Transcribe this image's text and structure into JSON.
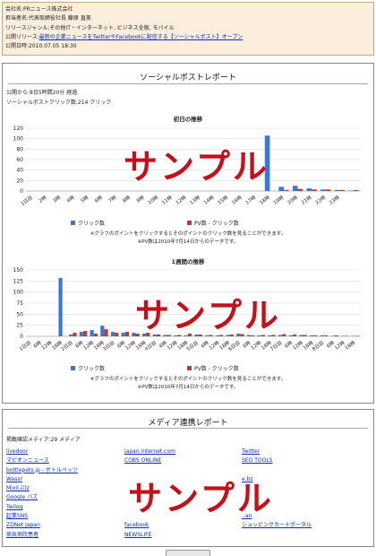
{
  "info": {
    "company": "会社名:PRニュース株式会社",
    "person": "担当者名:代表取締役社長 藤原 直美",
    "genre": "リリースジャンル:その他IT・インターネット, ビジネス全般, モバイル",
    "release_prefix": "公開リリース:",
    "release_link": "最新の企業ニュースをTwitterやFacebookに配信する【ソーシャルポスト】オープン",
    "published": "公開日時:2010.07.05 18:30"
  },
  "report": {
    "title": "ソーシャルポストレポート",
    "elapsed": "公開から:8日5時間20分 経過",
    "clicks": "ソーシャルポストクリック数:214 クリック",
    "sample_text": "サンプル"
  },
  "chart_data": [
    {
      "type": "bar",
      "title": "初日の推移",
      "categories": [
        "1日目",
        "2時",
        "3時",
        "4時",
        "5時",
        "6時",
        "7時",
        "8時",
        "9時",
        "10時",
        "11時",
        "12時",
        "13時",
        "14時",
        "15時",
        "16時",
        "17時",
        "18時",
        "19時",
        "20時",
        "21時",
        "22時",
        "23時",
        "0時"
      ],
      "tick_labels": [
        "1日目",
        "2時",
        "3時",
        "4時",
        "5時",
        "6時",
        "7時",
        "8時",
        "9時",
        "10時",
        "11時",
        "12時",
        "13時",
        "14時",
        "15時",
        "16時",
        "17時",
        "18時",
        "19時",
        "20時",
        "21時",
        "22時",
        "23時"
      ],
      "series": [
        {
          "name": "クリック数",
          "color": "#3a78d8",
          "values": [
            0,
            0,
            0,
            0,
            0,
            0,
            0,
            0,
            0,
            0,
            0,
            0,
            0,
            0,
            0,
            0,
            0,
            106,
            8,
            10,
            5,
            3,
            2,
            1
          ]
        },
        {
          "name": "PV数 - クリック数",
          "color": "#c0392b",
          "values": [
            0,
            0,
            0,
            0,
            0,
            0,
            0,
            0,
            0,
            0,
            0,
            0,
            0,
            0,
            0,
            0,
            0,
            0,
            2,
            4,
            3,
            3,
            2,
            2
          ]
        }
      ],
      "ylim": [
        0,
        120
      ],
      "yticks": [
        0,
        20,
        40,
        60,
        80,
        100,
        120
      ],
      "grid": true,
      "legend": "bottom",
      "notes": [
        "※グラフのポイントをクリックするとそのポイントのクリック数を見ることができます。",
        "※PV数は2010年7月14日からのデータです。"
      ]
    },
    {
      "type": "bar",
      "title": "1週間の推移",
      "categories": [
        "1日目",
        "6時",
        "12時",
        "18時",
        "2日目",
        "6時",
        "12時",
        "18時",
        "3日目",
        "6時",
        "12時",
        "18時",
        "4日目",
        "6時",
        "12時",
        "18時",
        "5日目",
        "6時",
        "12時",
        "18時",
        "6日目",
        "6時",
        "12時",
        "18時",
        "7日目",
        "6時",
        "12時",
        "18時",
        "8日目",
        "6時",
        "12時",
        "18時"
      ],
      "tick_labels": [
        "1日目",
        "6時",
        "12時",
        "18時",
        "2日目",
        "6時",
        "12時",
        "18時",
        "3日目",
        "6時",
        "12時",
        "18時",
        "4日目",
        "6時",
        "12時",
        "18時",
        "5日目",
        "6時",
        "12時",
        "18時",
        "6日目",
        "6時",
        "12時",
        "18時",
        "7日目",
        "6時",
        "12時",
        "18時",
        "8日目",
        "6時",
        "12時",
        "18時"
      ],
      "series": [
        {
          "name": "クリック数",
          "color": "#3a78d8",
          "values": [
            0,
            0,
            0,
            132,
            4,
            10,
            14,
            24,
            10,
            8,
            8,
            6,
            4,
            3,
            2,
            2,
            4,
            2,
            2,
            3,
            6,
            3,
            2,
            2,
            3,
            2,
            3,
            2,
            2,
            1,
            1,
            1
          ]
        },
        {
          "name": "PV数 - クリック数",
          "color": "#c0392b",
          "values": [
            0,
            0,
            0,
            0,
            8,
            12,
            6,
            16,
            8,
            10,
            6,
            8,
            4,
            3,
            3,
            6,
            4,
            3,
            3,
            4,
            5,
            2,
            3,
            3,
            5,
            4,
            3,
            2,
            2,
            2,
            1,
            1
          ]
        }
      ],
      "ylim": [
        0,
        150
      ],
      "yticks": [
        0,
        25,
        50,
        75,
        100,
        125,
        150
      ],
      "grid": true,
      "legend": "bottom",
      "notes": [
        "※グラフのポイントをクリックするとそのポイントのクリック数を見ることができます。",
        "※PV数は2010年7月14日からのデータです。"
      ]
    }
  ],
  "media": {
    "title": "メディア連携レポート",
    "count": "掲載確認メディア:29 メディア",
    "col1": [
      "livedoor",
      "マピオンニュース",
      "bottlepets.jp - ボトルペッツ",
      "Wassr",
      "Mixi(ぶ)z",
      "Google バズ",
      "Twilog",
      "起業SNS",
      "ZDNet Japan",
      "病気病院患者"
    ],
    "col2": [
      "japan.internet.com",
      "COBS ONLINE",
      "",
      "",
      "",
      "",
      "",
      "",
      "facebook",
      "NEWSLIFE"
    ],
    "col3": [
      "Twitter",
      "SEO TOOLS",
      "",
      "e.bz",
      "",
      "",
      "",
      "..an",
      "ショッピングカートポータル",
      ""
    ]
  }
}
